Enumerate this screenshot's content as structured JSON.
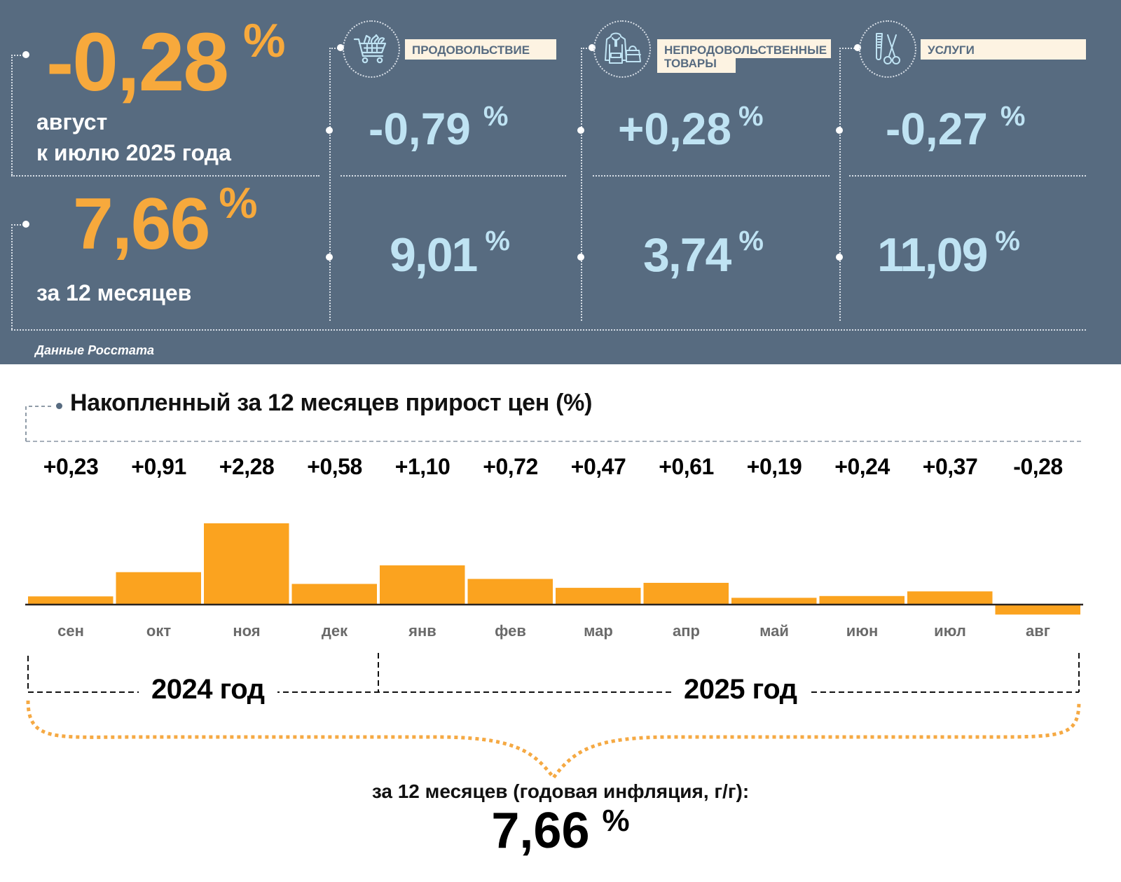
{
  "colors": {
    "panel_bg": "#576b80",
    "accent_orange": "#f7a93c",
    "value_blue": "#bfe3f3",
    "label_bg": "#fdf3e2",
    "bar_fill": "#fba31f"
  },
  "summary": {
    "monthly": {
      "value": "-0,28",
      "unit": "%",
      "caption_line1": "август",
      "caption_line2": "к июлю 2025 года"
    },
    "annual": {
      "value": "7,66",
      "unit": "%",
      "caption": "за 12 месяцев"
    },
    "source": "Данные Росстата"
  },
  "categories": [
    {
      "label": "ПРОДОВОЛЬСТВИЕ",
      "icon": "shopping-cart-icon",
      "monthly": "-0,79",
      "annual": "9,01",
      "unit": "%"
    },
    {
      "label_line1": "НЕПРОДОВОЛЬСТВЕННЫЕ",
      "label_line2": "ТОВАРЫ",
      "icon": "hoodie-bag-icon",
      "monthly": "+0,28",
      "annual": "3,74",
      "unit": "%"
    },
    {
      "label": "УСЛУГИ",
      "icon": "comb-scissors-icon",
      "monthly": "-0,27",
      "annual": "11,09",
      "unit": "%"
    }
  ],
  "chart_data": {
    "type": "bar",
    "title": "Накопленный за 12 месяцев прирост цен (%)",
    "categories": [
      "сен",
      "окт",
      "ноя",
      "дек",
      "янв",
      "фев",
      "мар",
      "апр",
      "май",
      "июн",
      "июл",
      "авг"
    ],
    "values": [
      0.23,
      0.91,
      2.28,
      0.58,
      1.1,
      0.72,
      0.47,
      0.61,
      0.19,
      0.24,
      0.37,
      -0.28
    ],
    "value_labels": [
      "+0,23",
      "+0,91",
      "+2,28",
      "+0,58",
      "+1,10",
      "+0,72",
      "+0,47",
      "+0,61",
      "+0,19",
      "+0,24",
      "+0,37",
      "-0,28"
    ],
    "xlabel": "",
    "ylabel": "%",
    "ylim": [
      -0.28,
      2.28
    ],
    "grid": false,
    "year_groups": [
      {
        "label": "2024 год",
        "months": [
          "сен",
          "окт",
          "ноя",
          "дек"
        ]
      },
      {
        "label": "2025 год",
        "months": [
          "янв",
          "фев",
          "мар",
          "апр",
          "май",
          "июн",
          "июл",
          "авг"
        ]
      }
    ],
    "annual_caption": "за 12 месяцев (годовая инфляция, г/г):",
    "annual_value": "7,66",
    "annual_unit": "%"
  }
}
